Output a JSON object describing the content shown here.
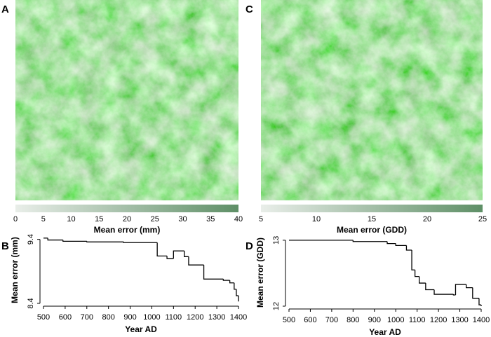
{
  "chart_data": [
    {
      "type": "map",
      "panel": "A",
      "xlim": [
        0,
        40
      ],
      "xticks": [
        0,
        5,
        10,
        15,
        20,
        25,
        30,
        35,
        40
      ],
      "xlabel": "Mean error (mm)",
      "colors": [
        "#e9eee9",
        "#5e8f66"
      ]
    },
    {
      "type": "line",
      "panel": "B",
      "step": true,
      "color": "#000000",
      "x": [
        500,
        520,
        590,
        700,
        870,
        1025,
        1070,
        1100,
        1150,
        1170,
        1240,
        1330,
        1360,
        1380,
        1390,
        1400
      ],
      "values": [
        9.42,
        9.39,
        9.37,
        9.36,
        9.35,
        9.14,
        9.1,
        9.22,
        9.13,
        9.0,
        8.78,
        8.76,
        8.72,
        8.62,
        8.52,
        8.43
      ],
      "xlim": [
        500,
        1400
      ],
      "xticks": [
        500,
        600,
        700,
        800,
        900,
        1000,
        1100,
        1200,
        1300,
        1400
      ],
      "ylim": [
        8.4,
        9.44
      ],
      "yticks": [
        8.4,
        9.4
      ],
      "xlabel": "Year AD",
      "ylabel": "Mean error (mm)"
    },
    {
      "type": "map",
      "panel": "C",
      "xlim": [
        5,
        25
      ],
      "xticks": [
        5,
        10,
        15,
        20,
        25
      ],
      "xlabel": "Mean error (GDD)",
      "colors": [
        "#e9eee9",
        "#5e8f66"
      ]
    },
    {
      "type": "line",
      "panel": "D",
      "step": true,
      "color": "#000000",
      "x": [
        500,
        800,
        960,
        1000,
        1050,
        1075,
        1090,
        1110,
        1140,
        1180,
        1270,
        1280,
        1330,
        1360,
        1390,
        1400
      ],
      "values": [
        13.0,
        12.98,
        12.95,
        12.92,
        12.85,
        12.55,
        12.45,
        12.35,
        12.25,
        12.18,
        12.17,
        12.33,
        12.28,
        12.12,
        12.02,
        12.0
      ],
      "xlim": [
        500,
        1400
      ],
      "xticks": [
        500,
        600,
        700,
        800,
        900,
        1000,
        1100,
        1200,
        1300,
        1400
      ],
      "ylim": [
        12,
        13.02
      ],
      "yticks": [
        12,
        13
      ],
      "xlabel": "Year AD",
      "ylabel": "Mean error (GDD)"
    }
  ]
}
